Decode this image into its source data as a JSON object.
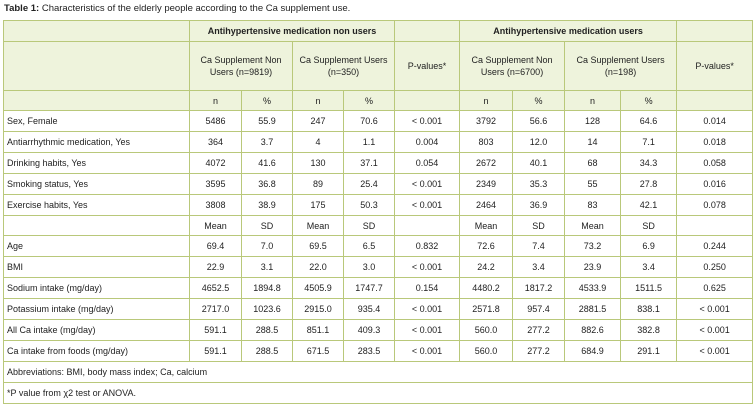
{
  "caption": {
    "label": "Table 1:",
    "text": "Characteristics of the elderly people according to the Ca supplement use."
  },
  "groups": {
    "nonmed": "Antihypertensive medication non users",
    "med": "Antihypertensive medication users"
  },
  "subheaders": {
    "nonmed_nonusers": "Ca Supplement Non Users (n=9819)",
    "nonmed_users": "Ca Supplement Users (n=350)",
    "nonmed_p": "P-values*",
    "med_nonusers": "Ca Supplement Non Users (n=6700)",
    "med_users": "Ca Supplement Users (n=198)",
    "med_p": "P-values*"
  },
  "stat_headers_1": [
    "n",
    "%",
    "n",
    "%",
    "n",
    "%",
    "n",
    "%"
  ],
  "rows_1": [
    {
      "label": "Sex, Female",
      "v": [
        "5486",
        "55.9",
        "247",
        "70.6",
        "< 0.001",
        "3792",
        "56.6",
        "128",
        "64.6",
        "0.014"
      ]
    },
    {
      "label": "Antiarrhythmic medication, Yes",
      "v": [
        "364",
        "3.7",
        "4",
        "1.1",
        "0.004",
        "803",
        "12.0",
        "14",
        "7.1",
        "0.018"
      ]
    },
    {
      "label": "Drinking habits, Yes",
      "v": [
        "4072",
        "41.6",
        "130",
        "37.1",
        "0.054",
        "2672",
        "40.1",
        "68",
        "34.3",
        "0.058"
      ]
    },
    {
      "label": "Smoking status, Yes",
      "v": [
        "3595",
        "36.8",
        "89",
        "25.4",
        "< 0.001",
        "2349",
        "35.3",
        "55",
        "27.8",
        "0.016"
      ]
    },
    {
      "label": "Exercise habits, Yes",
      "v": [
        "3808",
        "38.9",
        "175",
        "50.3",
        "< 0.001",
        "2464",
        "36.9",
        "83",
        "42.1",
        "0.078"
      ]
    }
  ],
  "stat_headers_2": [
    "Mean",
    "SD",
    "Mean",
    "SD",
    "Mean",
    "SD",
    "Mean",
    "SD"
  ],
  "rows_2": [
    {
      "label": "Age",
      "v": [
        "69.4",
        "7.0",
        "69.5",
        "6.5",
        "0.832",
        "72.6",
        "7.4",
        "73.2",
        "6.9",
        "0.244"
      ]
    },
    {
      "label": "BMI",
      "v": [
        "22.9",
        "3.1",
        "22.0",
        "3.0",
        "< 0.001",
        "24.2",
        "3.4",
        "23.9",
        "3.4",
        "0.250"
      ]
    },
    {
      "label": "Sodium intake (mg/day)",
      "v": [
        "4652.5",
        "1894.8",
        "4505.9",
        "1747.7",
        "0.154",
        "4480.2",
        "1817.2",
        "4533.9",
        "1511.5",
        "0.625"
      ]
    },
    {
      "label": "Potassium intake (mg/day)",
      "v": [
        "2717.0",
        "1023.6",
        "2915.0",
        "935.4",
        "< 0.001",
        "2571.8",
        "957.4",
        "2881.5",
        "838.1",
        "< 0.001"
      ]
    },
    {
      "label": "All Ca intake (mg/day)",
      "v": [
        "591.1",
        "288.5",
        "851.1",
        "409.3",
        "< 0.001",
        "560.0",
        "277.2",
        "882.6",
        "382.8",
        "< 0.001"
      ]
    },
    {
      "label": "Ca intake from foods (mg/day)",
      "v": [
        "591.1",
        "288.5",
        "671.5",
        "283.5",
        "< 0.001",
        "560.0",
        "277.2",
        "684.9",
        "291.1",
        "< 0.001"
      ]
    }
  ],
  "footnotes": {
    "abbrev": "Abbreviations: BMI, body mass index; Ca, calcium",
    "pvalue": "*P value from χ2 test or ANOVA."
  }
}
